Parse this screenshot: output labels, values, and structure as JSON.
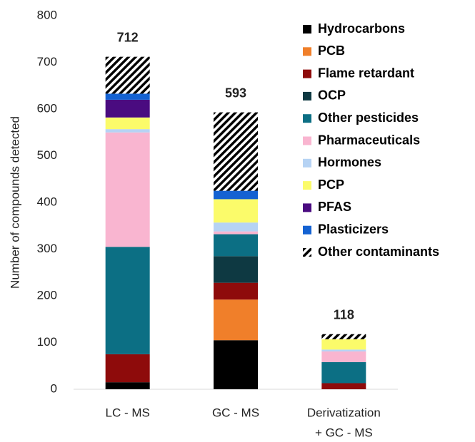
{
  "chart_data": {
    "type": "stacked_bar",
    "y_axis_label": "Number of compounds detected",
    "categories": [
      [
        "LC - MS"
      ],
      [
        "GC - MS"
      ],
      [
        "Derivatization",
        "+ GC - MS"
      ]
    ],
    "ylim": [
      0,
      800
    ],
    "yticks": [
      0,
      100,
      200,
      300,
      400,
      500,
      600,
      700,
      800
    ],
    "totals": [
      712,
      593,
      118
    ],
    "series": [
      {
        "name": "Hydrocarbons",
        "color": "#000000",
        "values": [
          15,
          105,
          0
        ]
      },
      {
        "name": "PCB",
        "color": "#f07f2a",
        "values": [
          0,
          87,
          0
        ]
      },
      {
        "name": "Flame retardant",
        "color": "#8e0b0b",
        "values": [
          60,
          36,
          13
        ]
      },
      {
        "name": "OCP",
        "color": "#0e3942",
        "values": [
          0,
          57,
          0
        ]
      },
      {
        "name": "Other pesticides",
        "color": "#0c6f84",
        "values": [
          230,
          47,
          45
        ]
      },
      {
        "name": "Pharmaceuticals",
        "color": "#f9b5d0",
        "values": [
          245,
          6,
          23
        ]
      },
      {
        "name": "Hormones",
        "color": "#b6d3f4",
        "values": [
          7,
          19,
          4
        ]
      },
      {
        "name": "PCP",
        "color": "#fbfb6a",
        "values": [
          25,
          50,
          22
        ]
      },
      {
        "name": "PFAS",
        "color": "#4a0b80",
        "values": [
          38,
          0,
          0
        ]
      },
      {
        "name": "Plasticizers",
        "color": "#1462d2",
        "values": [
          13,
          18,
          0
        ]
      },
      {
        "name": "Other contaminants",
        "color": "hatch",
        "values": [
          79,
          168,
          11
        ]
      }
    ]
  }
}
